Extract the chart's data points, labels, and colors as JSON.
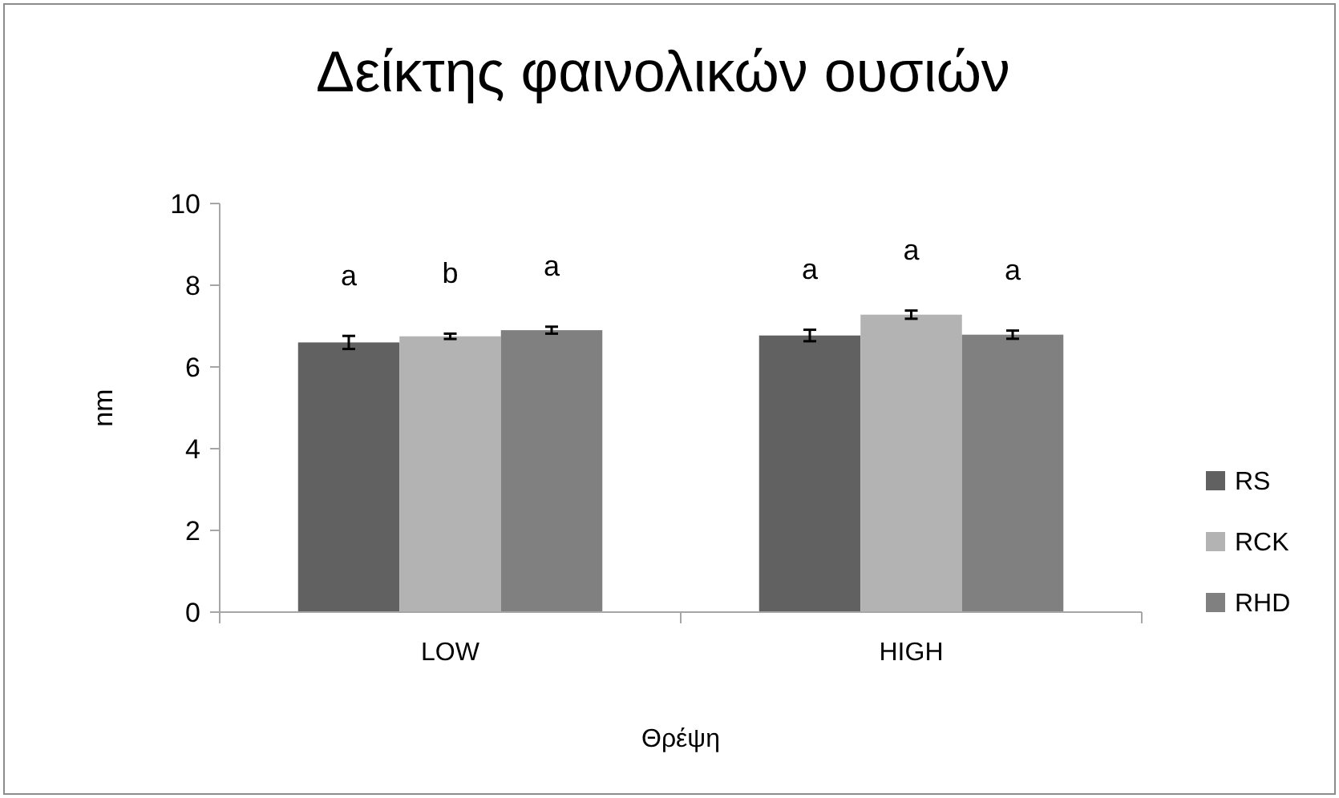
{
  "chart_data": {
    "type": "bar",
    "title": "Δείκτης φαινολικών ουσιών",
    "xlabel": "Θρέψη",
    "ylabel": "nm",
    "categories": [
      "LOW",
      "HIGH"
    ],
    "series": [
      {
        "name": "RS",
        "color": "#616161",
        "values": [
          6.6,
          6.77
        ],
        "errors": [
          0.16,
          0.14
        ]
      },
      {
        "name": "RCK",
        "color": "#b3b3b3",
        "values": [
          6.75,
          7.28
        ],
        "errors": [
          0.065,
          0.1
        ]
      },
      {
        "name": "RHD",
        "color": "#808080",
        "values": [
          6.9,
          6.79
        ],
        "errors": [
          0.085,
          0.1
        ]
      }
    ],
    "ylim": [
      0,
      10
    ],
    "yticks": [
      0,
      2,
      4,
      6,
      8,
      10
    ],
    "grid": false,
    "legend": "right",
    "annotations": [
      "a",
      "b",
      "a",
      "a",
      "a",
      "a"
    ]
  }
}
